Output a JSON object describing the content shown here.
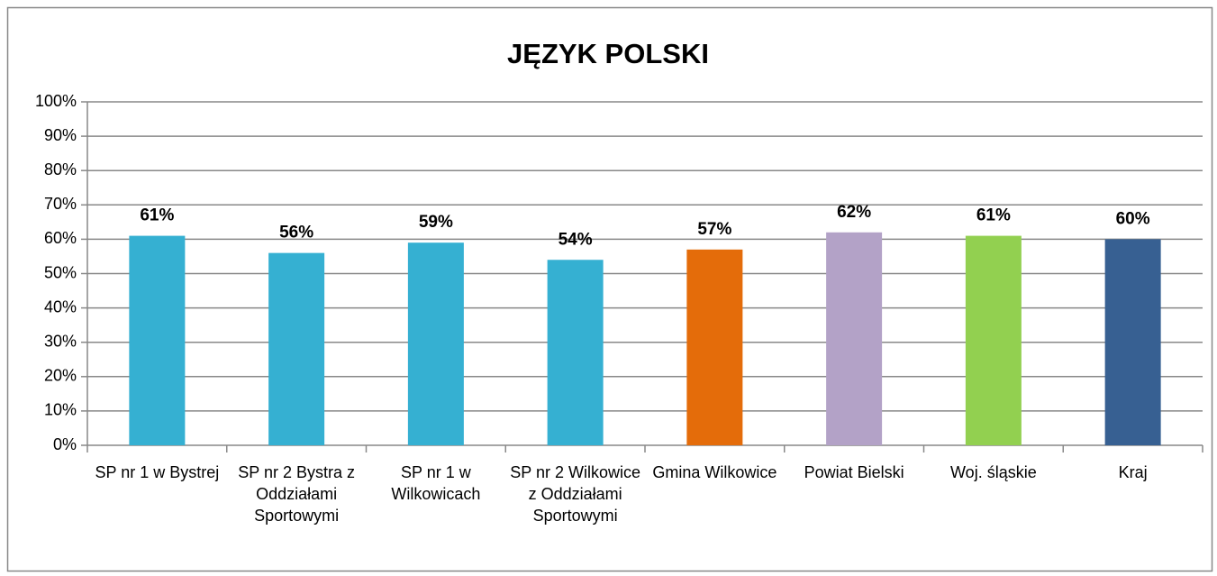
{
  "chart_data": {
    "type": "bar",
    "title": "JĘZYK POLSKI",
    "categories": [
      "SP nr 1 w Bystrej",
      "SP nr 2 Bystra z Oddziałami Sportowymi",
      "SP nr 1 w Wilkowicach",
      "SP nr 2 Wilkowice z Oddziałami Sportowymi",
      "Gmina Wilkowice",
      "Powiat Bielski",
      "Woj. śląskie",
      "Kraj"
    ],
    "values": [
      61,
      56,
      59,
      54,
      57,
      62,
      61,
      60
    ],
    "value_labels": [
      "61%",
      "56%",
      "59%",
      "54%",
      "57%",
      "62%",
      "61%",
      "60%"
    ],
    "colors": [
      "#35b0d2",
      "#35b0d2",
      "#35b0d2",
      "#35b0d2",
      "#e46c0a",
      "#b3a2c7",
      "#92d050",
      "#376092"
    ],
    "ylim": [
      0,
      100
    ],
    "yticks": [
      {
        "value": 0,
        "label": "0%"
      },
      {
        "value": 10,
        "label": "10%"
      },
      {
        "value": 20,
        "label": "20%"
      },
      {
        "value": 30,
        "label": "30%"
      },
      {
        "value": 40,
        "label": "40%"
      },
      {
        "value": 50,
        "label": "50%"
      },
      {
        "value": 60,
        "label": "60%"
      },
      {
        "value": 70,
        "label": "70%"
      },
      {
        "value": 80,
        "label": "80%"
      },
      {
        "value": 90,
        "label": "90%"
      },
      {
        "value": 100,
        "label": "100%"
      }
    ],
    "grid": true
  }
}
